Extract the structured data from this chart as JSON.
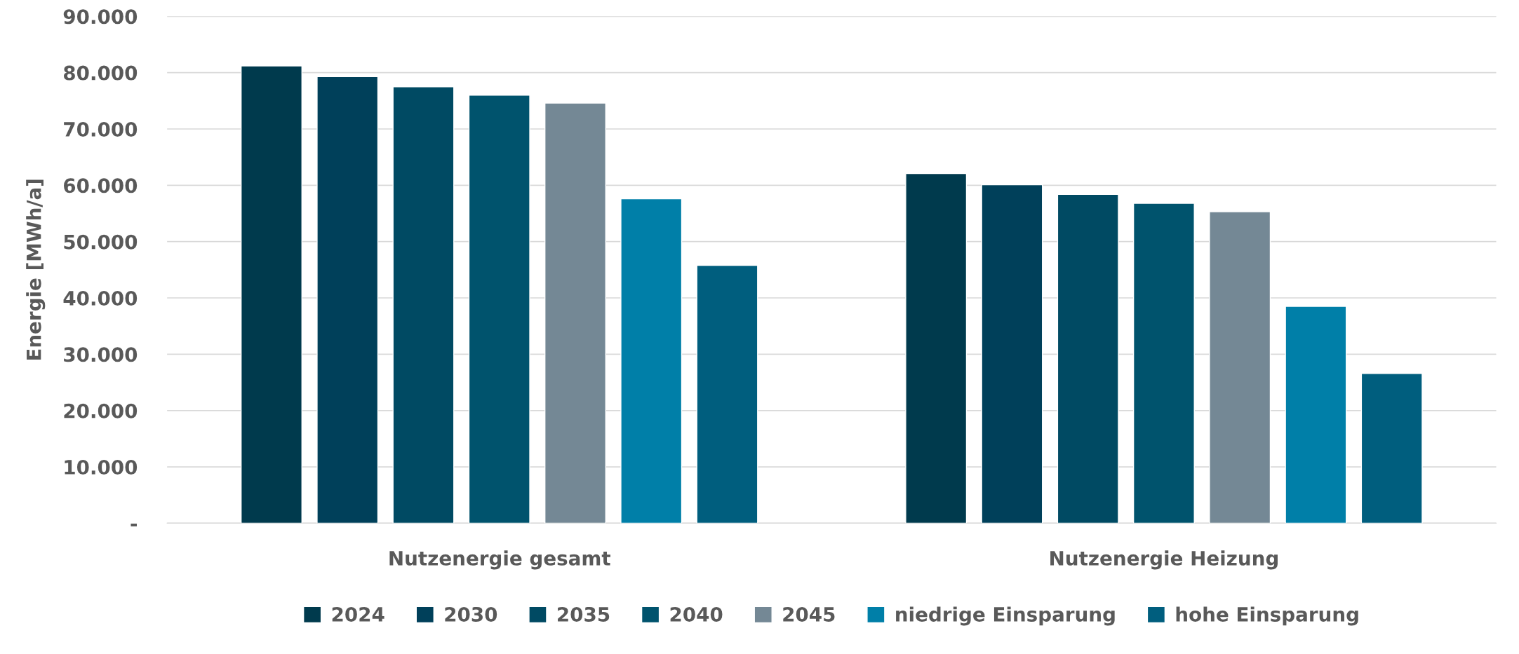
{
  "chart_data": {
    "type": "bar",
    "ylabel": "Energie [MWh/a]",
    "categories": [
      "Nutzenergie gesamt",
      "Nutzenergie Heizung"
    ],
    "series": [
      {
        "name": "2024",
        "color": "#003a4d",
        "values": [
          81200,
          62100
        ]
      },
      {
        "name": "2030",
        "color": "#00405a",
        "values": [
          79300,
          60100
        ]
      },
      {
        "name": "2035",
        "color": "#004a63",
        "values": [
          77500,
          58400
        ]
      },
      {
        "name": "2040",
        "color": "#00536d",
        "values": [
          76000,
          56800
        ]
      },
      {
        "name": "2045",
        "color": "#748895",
        "values": [
          74600,
          55300
        ]
      },
      {
        "name": "niedrige Einsparung",
        "color": "#007fa8",
        "values": [
          57600,
          38500
        ]
      },
      {
        "name": "hohe Einsparung",
        "color": "#005e7e",
        "values": [
          45800,
          26600
        ]
      }
    ],
    "ylim": [
      0,
      90000
    ],
    "yticks": [
      {
        "value": 0,
        "label": "-"
      },
      {
        "value": 10000,
        "label": "10.000"
      },
      {
        "value": 20000,
        "label": "20.000"
      },
      {
        "value": 30000,
        "label": "30.000"
      },
      {
        "value": 40000,
        "label": "40.000"
      },
      {
        "value": 50000,
        "label": "50.000"
      },
      {
        "value": 60000,
        "label": "60.000"
      },
      {
        "value": 70000,
        "label": "70.000"
      },
      {
        "value": 80000,
        "label": "80.000"
      },
      {
        "value": 90000,
        "label": "90.000"
      }
    ],
    "grid": "y",
    "legend": "bottom"
  }
}
